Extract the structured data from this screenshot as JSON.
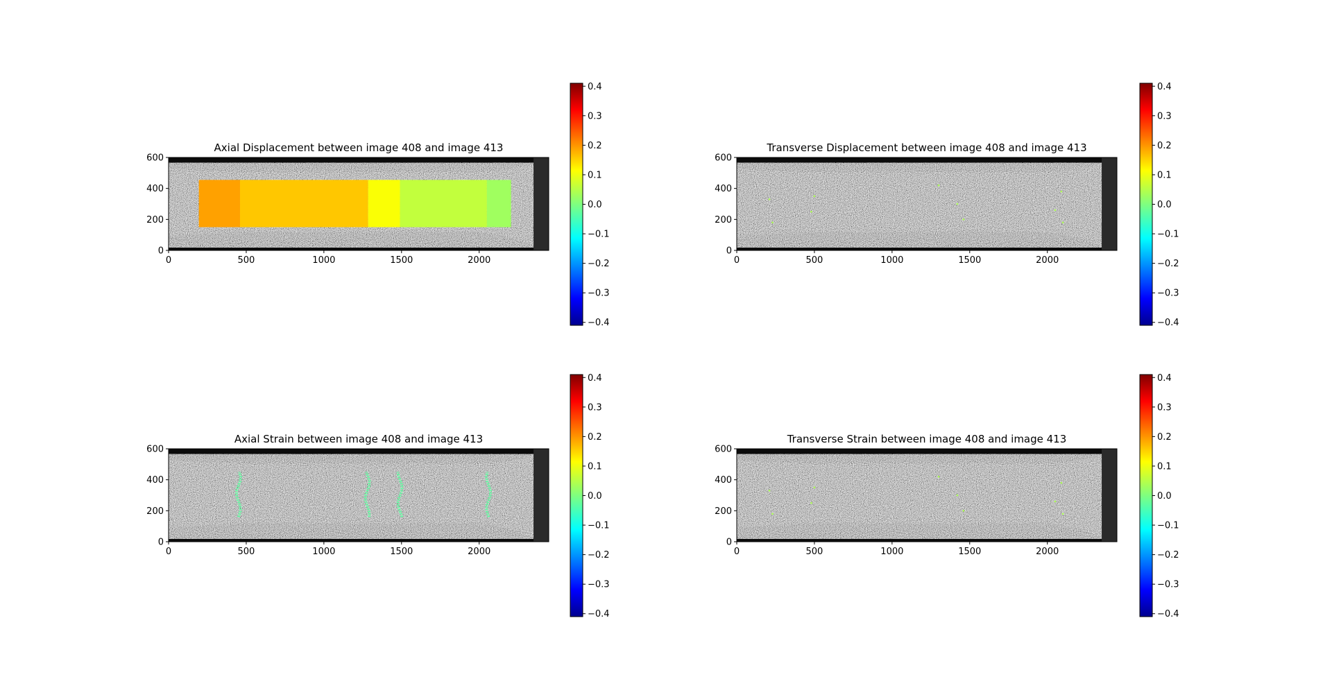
{
  "colormap": {
    "name": "jet",
    "ticks": [
      0.4,
      0.3,
      0.2,
      0.1,
      0.0,
      -0.1,
      -0.2,
      -0.3,
      -0.4
    ],
    "tick_labels": [
      "0.4",
      "0.3",
      "0.2",
      "0.1",
      "0.0",
      "−0.1",
      "−0.2",
      "−0.3",
      "−0.4"
    ],
    "range": [
      -0.41,
      0.41
    ]
  },
  "chart_data": [
    {
      "type": "heatmap",
      "title": "Axial Displacement between image 408 and image 413",
      "xlim": [
        0,
        2448
      ],
      "ylim": [
        0,
        600
      ],
      "xticks": [
        0,
        500,
        1000,
        1500,
        2000
      ],
      "xtick_labels": [
        "0",
        "500",
        "1000",
        "1500",
        "2000"
      ],
      "yticks": [
        0,
        200,
        400,
        600
      ],
      "ytick_labels": [
        "0",
        "200",
        "400",
        "600"
      ],
      "field_region": {
        "x": [
          195,
          2205
        ],
        "y": [
          150,
          455
        ]
      },
      "field_segments": [
        {
          "x": [
            195,
            460
          ],
          "value": 0.19
        },
        {
          "x": [
            460,
            1285
          ],
          "value": 0.16
        },
        {
          "x": [
            1285,
            1490
          ],
          "value": 0.11
        },
        {
          "x": [
            1490,
            2050
          ],
          "value": 0.06
        },
        {
          "x": [
            2050,
            2205
          ],
          "value": 0.03
        }
      ],
      "grid": false
    },
    {
      "type": "heatmap",
      "title": "Transverse Displacement between image 408 and image 413",
      "xlim": [
        0,
        2448
      ],
      "ylim": [
        0,
        600
      ],
      "xticks": [
        0,
        500,
        1000,
        1500,
        2000
      ],
      "xtick_labels": [
        "0",
        "500",
        "1000",
        "1500",
        "2000"
      ],
      "yticks": [
        0,
        200,
        400,
        600
      ],
      "ytick_labels": [
        "0",
        "200",
        "400",
        "600"
      ],
      "field_value": 0.0,
      "grid": false
    },
    {
      "type": "heatmap",
      "title": "Axial Strain between image 408 and image 413",
      "xlim": [
        0,
        2448
      ],
      "ylim": [
        0,
        600
      ],
      "xticks": [
        0,
        500,
        1000,
        1500,
        2000
      ],
      "xtick_labels": [
        "0",
        "500",
        "1000",
        "1500",
        "2000"
      ],
      "yticks": [
        0,
        200,
        400,
        600
      ],
      "ytick_labels": [
        "0",
        "200",
        "400",
        "600"
      ],
      "strain_bands_x": [
        450,
        1280,
        1490,
        2060
      ],
      "strain_band_y": [
        160,
        450
      ],
      "band_value": -0.03,
      "grid": false
    },
    {
      "type": "heatmap",
      "title": "Transverse Strain between image 408 and image 413",
      "xlim": [
        0,
        2448
      ],
      "ylim": [
        0,
        600
      ],
      "xticks": [
        0,
        500,
        1000,
        1500,
        2000
      ],
      "xtick_labels": [
        "0",
        "500",
        "1000",
        "1500",
        "2000"
      ],
      "yticks": [
        0,
        200,
        400,
        600
      ],
      "ytick_labels": [
        "0",
        "200",
        "400",
        "600"
      ],
      "field_value": 0.0,
      "grid": false
    }
  ]
}
